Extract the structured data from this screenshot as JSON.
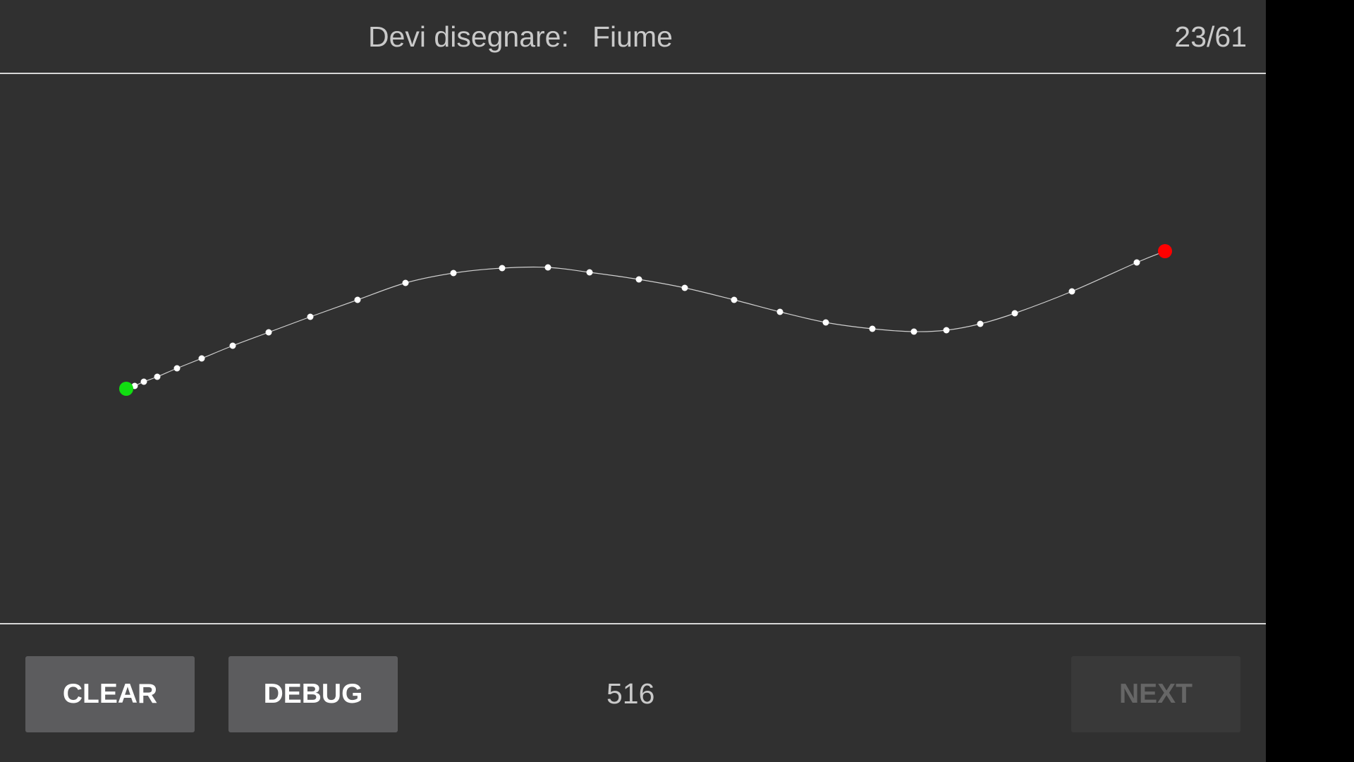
{
  "header": {
    "prompt_label": "Devi disegnare:",
    "prompt_word": "Fiume",
    "progress": "23/61"
  },
  "footer": {
    "clear_label": "CLEAR",
    "debug_label": "DEBUG",
    "score": "516",
    "next_label": "NEXT"
  },
  "colors": {
    "background": "#303030",
    "divider": "#d7d7d7",
    "stroke": "#cfcfcf",
    "point": "#ffffff",
    "start_point": "#11dd11",
    "end_point": "#ff0000"
  }
}
